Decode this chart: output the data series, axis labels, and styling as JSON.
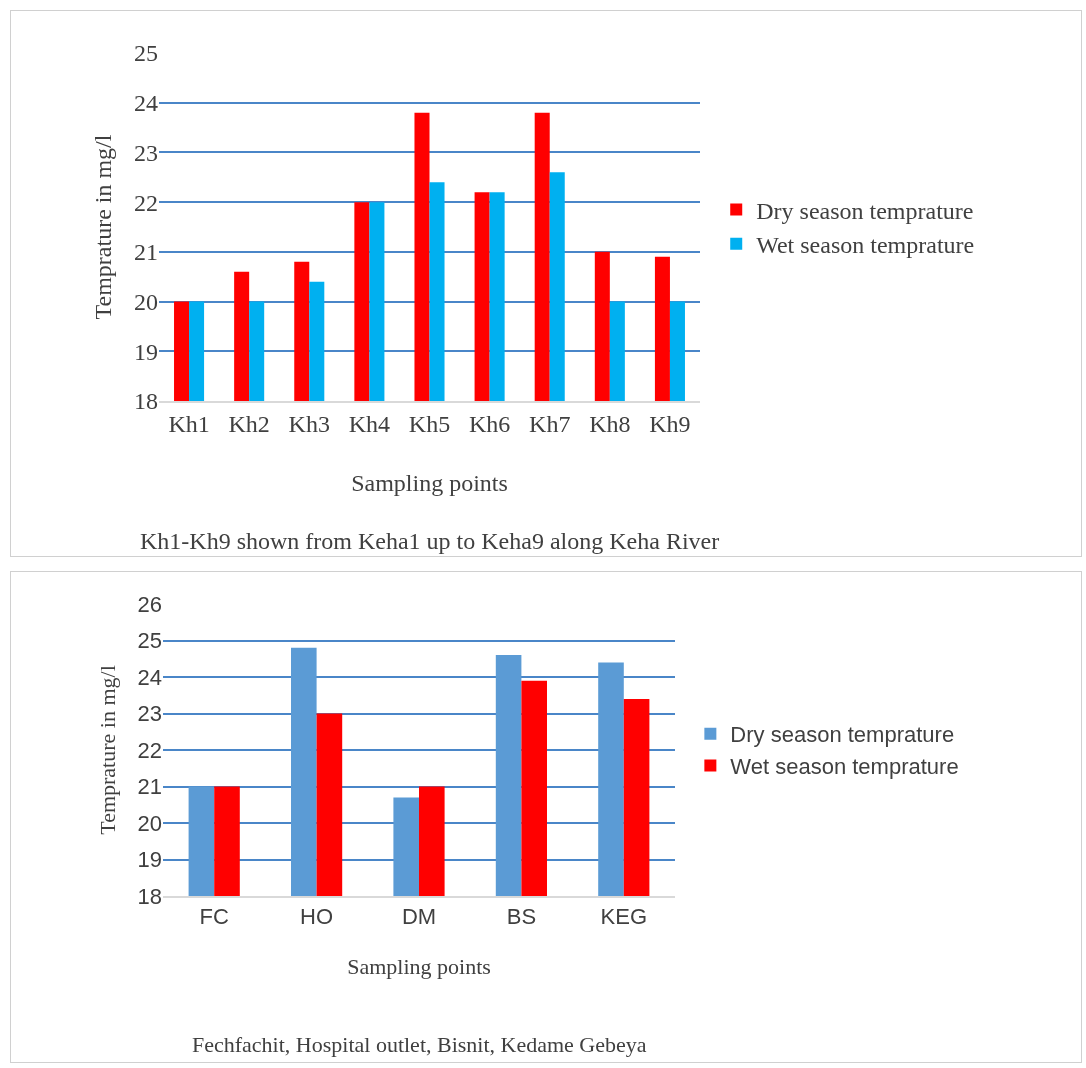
{
  "chart_data": [
    {
      "type": "bar",
      "xlabel": "Sampling points",
      "ylabel": "Temprature in mg/l",
      "categories": [
        "Kh1",
        "Kh2",
        "Kh3",
        "Kh4",
        "Kh5",
        "Kh6",
        "Kh7",
        "Kh8",
        "Kh9"
      ],
      "series": [
        {
          "name": "Dry season temprature",
          "color": "#ff0000",
          "values": [
            20,
            20.6,
            20.8,
            22,
            23.8,
            22.2,
            23.8,
            21,
            20.9
          ]
        },
        {
          "name": "Wet season temprature",
          "color": "#00b0f0",
          "values": [
            20,
            20,
            20.4,
            22,
            22.4,
            22.2,
            22.6,
            20,
            20
          ]
        }
      ],
      "ylim": [
        18,
        25
      ],
      "yticks": [
        18,
        19,
        20,
        21,
        22,
        23,
        24,
        25
      ],
      "grid": "y",
      "legend": "right",
      "annotations": [
        "Kh1-Kh9 shown from Keha1 up to Keha9 along Keha River"
      ]
    },
    {
      "type": "bar",
      "xlabel": "Sampling points",
      "ylabel": "Temprature in mg/l",
      "categories": [
        "FC",
        "HO",
        "DM",
        "BS",
        "KEG"
      ],
      "series": [
        {
          "name": "Dry season temprature",
          "color": "#5b9bd5",
          "values": [
            21,
            24.8,
            20.7,
            24.6,
            24.4
          ]
        },
        {
          "name": "Wet season temprature",
          "color": "#ff0000",
          "values": [
            21,
            23,
            21,
            23.9,
            23.4
          ]
        }
      ],
      "ylim": [
        18,
        26
      ],
      "yticks": [
        18,
        19,
        20,
        21,
        22,
        23,
        24,
        25,
        26
      ],
      "grid": "y",
      "legend": "right",
      "annotations": [
        "Fechfachit, Hospital outlet, Bisnit, Kedame Gebeya"
      ]
    }
  ]
}
